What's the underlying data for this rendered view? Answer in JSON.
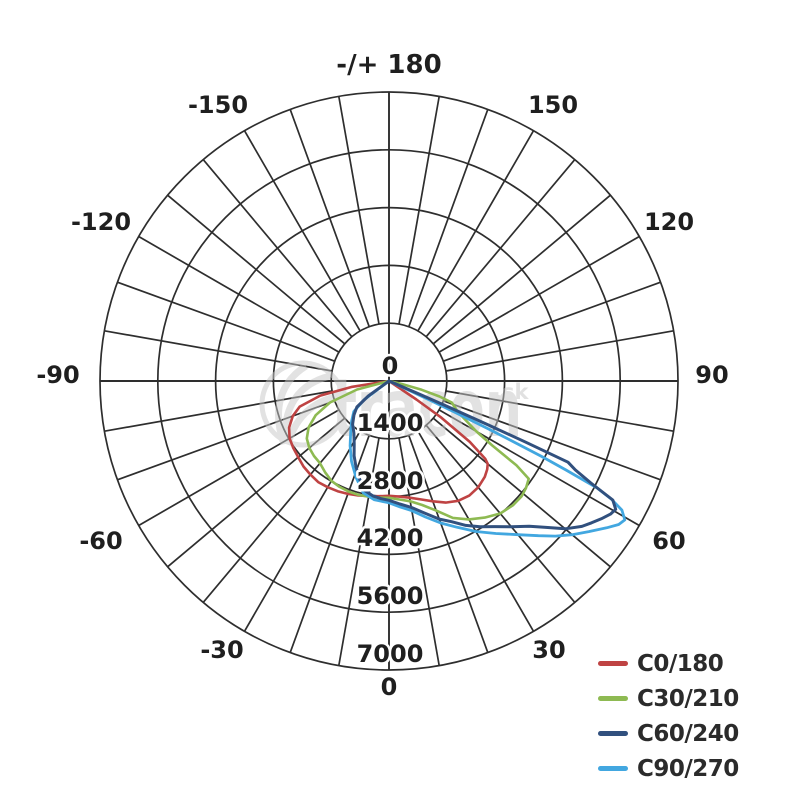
{
  "page": {
    "background": "#ffffff"
  },
  "watermark": {
    "text": "tracon",
    "suffix": ".sk"
  },
  "legend": {
    "items": [
      {
        "label": "C0/180",
        "color": "#bf4343"
      },
      {
        "label": "C30/210",
        "color": "#8eba52"
      },
      {
        "label": "C60/240",
        "color": "#31507e"
      },
      {
        "label": "C90/270",
        "color": "#42a7e0"
      }
    ]
  },
  "chart_data": {
    "type": "line",
    "subtype": "polar-photometric-intensity",
    "units": "cd",
    "angle_unit": "deg",
    "grid": true,
    "legend_position": "bottom-right",
    "radial_ticks": [
      0,
      1400,
      2800,
      4200,
      5600,
      7000
    ],
    "radial_max": 7000,
    "angle_step_deg": 10,
    "angle_labels": [
      {
        "text": "-/+ 180",
        "angle": 180
      },
      {
        "text": "-150",
        "angle": -150
      },
      {
        "text": "150",
        "angle": 150
      },
      {
        "text": "-120",
        "angle": -120
      },
      {
        "text": "120",
        "angle": 120
      },
      {
        "text": "-90",
        "angle": -90
      },
      {
        "text": "90",
        "angle": 90
      },
      {
        "text": "-60",
        "angle": -60
      },
      {
        "text": "60",
        "angle": 60
      },
      {
        "text": "-30",
        "angle": -30
      },
      {
        "text": "30",
        "angle": 30
      },
      {
        "text": "0",
        "angle": 0
      }
    ],
    "series": [
      {
        "name": "C0/180",
        "color": "#bf4343",
        "width": 2.6,
        "points": [
          [
            -84,
            0
          ],
          [
            -81,
            900
          ],
          [
            -78,
            1700
          ],
          [
            -74,
            2250
          ],
          [
            -70,
            2480
          ],
          [
            -65,
            2670
          ],
          [
            -60,
            2780
          ],
          [
            -55,
            2830
          ],
          [
            -50,
            2870
          ],
          [
            -45,
            2930
          ],
          [
            -40,
            2960
          ],
          [
            -35,
            2990
          ],
          [
            -30,
            2970
          ],
          [
            -25,
            2945
          ],
          [
            -20,
            2910
          ],
          [
            -15,
            2870
          ],
          [
            -10,
            2830
          ],
          [
            -5,
            2800
          ],
          [
            0,
            2780
          ],
          [
            5,
            2810
          ],
          [
            10,
            2870
          ],
          [
            15,
            2970
          ],
          [
            20,
            3100
          ],
          [
            25,
            3250
          ],
          [
            30,
            3350
          ],
          [
            35,
            3390
          ],
          [
            40,
            3360
          ],
          [
            45,
            3280
          ],
          [
            48,
            3200
          ],
          [
            50,
            3120
          ],
          [
            51,
            3000
          ],
          [
            53,
            2450
          ],
          [
            55,
            1550
          ],
          [
            56,
            800
          ],
          [
            56.6,
            0
          ]
        ]
      },
      {
        "name": "C30/210",
        "color": "#8eba52",
        "width": 2.6,
        "points": [
          [
            -78,
            0
          ],
          [
            -75,
            800
          ],
          [
            -70,
            1520
          ],
          [
            -65,
            1960
          ],
          [
            -60,
            2250
          ],
          [
            -55,
            2430
          ],
          [
            -50,
            2520
          ],
          [
            -45,
            2570
          ],
          [
            -40,
            2600
          ],
          [
            -35,
            2700
          ],
          [
            -30,
            2790
          ],
          [
            -25,
            2830
          ],
          [
            -20,
            2850
          ],
          [
            -15,
            2855
          ],
          [
            -10,
            2845
          ],
          [
            -5,
            2835
          ],
          [
            0,
            2830
          ],
          [
            5,
            2880
          ],
          [
            10,
            2960
          ],
          [
            15,
            3110
          ],
          [
            20,
            3340
          ],
          [
            25,
            3660
          ],
          [
            30,
            3870
          ],
          [
            35,
            4040
          ],
          [
            40,
            4190
          ],
          [
            45,
            4250
          ],
          [
            49,
            4255
          ],
          [
            52,
            4210
          ],
          [
            55,
            4130
          ],
          [
            56.5,
            3700
          ],
          [
            58,
            2950
          ],
          [
            60,
            2450
          ],
          [
            63,
            2080
          ],
          [
            66,
            1820
          ],
          [
            69,
            1690
          ],
          [
            71,
            1610
          ],
          [
            73,
            1280
          ],
          [
            75,
            820
          ],
          [
            77,
            330
          ],
          [
            78,
            0
          ]
        ]
      },
      {
        "name": "C60/240",
        "color": "#31507e",
        "width": 3,
        "points": [
          [
            -58,
            0
          ],
          [
            -54,
            620
          ],
          [
            -51,
            1000
          ],
          [
            -46,
            1180
          ],
          [
            -40,
            1370
          ],
          [
            -34,
            1520
          ],
          [
            -29,
            1740
          ],
          [
            -25,
            2000
          ],
          [
            -21,
            2230
          ],
          [
            -17,
            2460
          ],
          [
            -13,
            2710
          ],
          [
            -8,
            2810
          ],
          [
            -4,
            2855
          ],
          [
            0,
            2890
          ],
          [
            5,
            2990
          ],
          [
            10,
            3110
          ],
          [
            15,
            3310
          ],
          [
            20,
            3560
          ],
          [
            24,
            3730
          ],
          [
            28,
            3960
          ],
          [
            32,
            4160
          ],
          [
            36,
            4360
          ],
          [
            40,
            4610
          ],
          [
            44,
            4890
          ],
          [
            47,
            5200
          ],
          [
            50,
            5570
          ],
          [
            53,
            5850
          ],
          [
            55,
            5990
          ],
          [
            57,
            6130
          ],
          [
            59,
            6260
          ],
          [
            60.5,
            6310
          ],
          [
            62,
            6140
          ],
          [
            63.2,
            5480
          ],
          [
            64.5,
            5000
          ],
          [
            65.6,
            4760
          ],
          [
            65.9,
            3600
          ],
          [
            66.1,
            2620
          ],
          [
            66.35,
            1500
          ],
          [
            66.5,
            840
          ],
          [
            66.6,
            0
          ]
        ]
      },
      {
        "name": "C90/270",
        "color": "#42a7e0",
        "width": 2.8,
        "points": [
          [
            -57,
            0
          ],
          [
            -53,
            750
          ],
          [
            -49,
            1130
          ],
          [
            -43,
            1330
          ],
          [
            -37,
            1540
          ],
          [
            -31,
            1830
          ],
          [
            -25,
            2150
          ],
          [
            -19,
            2460
          ],
          [
            -13,
            2780
          ],
          [
            -7,
            2900
          ],
          [
            0,
            2950
          ],
          [
            5,
            3060
          ],
          [
            10,
            3190
          ],
          [
            15,
            3410
          ],
          [
            20,
            3660
          ],
          [
            25,
            3910
          ],
          [
            30,
            4210
          ],
          [
            35,
            4510
          ],
          [
            40,
            4860
          ],
          [
            44,
            5210
          ],
          [
            47,
            5510
          ],
          [
            50,
            5790
          ],
          [
            53,
            6060
          ],
          [
            56,
            6360
          ],
          [
            58,
            6560
          ],
          [
            59.5,
            6630
          ],
          [
            61,
            6450
          ],
          [
            62,
            6100
          ],
          [
            62.8,
            5660
          ],
          [
            63.3,
            4800
          ],
          [
            63.7,
            4120
          ],
          [
            64,
            3300
          ],
          [
            64.3,
            2690
          ],
          [
            64.6,
            1800
          ],
          [
            64.9,
            1100
          ],
          [
            65.1,
            500
          ],
          [
            65.3,
            0
          ]
        ]
      }
    ]
  }
}
